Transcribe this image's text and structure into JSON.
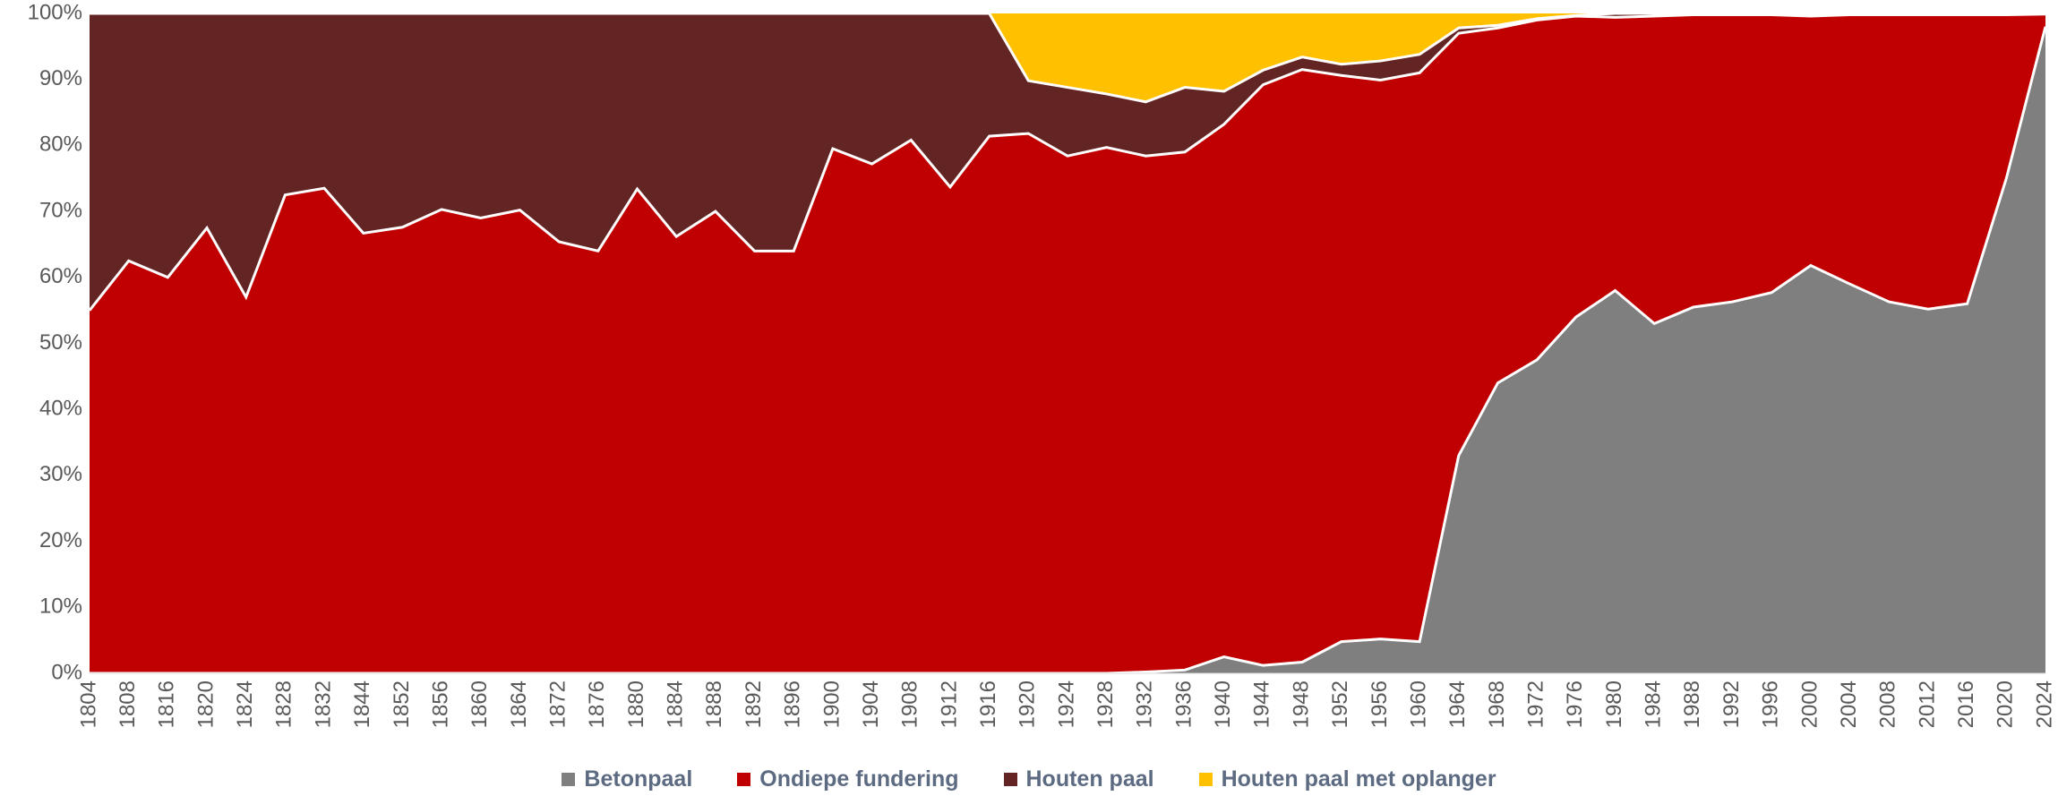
{
  "chart_data": {
    "type": "stacked-area-100",
    "categories": [
      "1804",
      "1808",
      "1816",
      "1820",
      "1824",
      "1828",
      "1832",
      "1844",
      "1852",
      "1856",
      "1860",
      "1864",
      "1872",
      "1876",
      "1880",
      "1884",
      "1888",
      "1892",
      "1896",
      "1900",
      "1904",
      "1908",
      "1912",
      "1916",
      "1920",
      "1924",
      "1928",
      "1932",
      "1936",
      "1940",
      "1944",
      "1948",
      "1952",
      "1956",
      "1960",
      "1964",
      "1968",
      "1972",
      "1976",
      "1980",
      "1984",
      "1988",
      "1992",
      "1996",
      "2000",
      "2004",
      "2008",
      "2012",
      "2016",
      "2020",
      "2024"
    ],
    "series": [
      {
        "name": "Betonpaal",
        "color": "#7f7f7f",
        "values": [
          0,
          0,
          0,
          0,
          0,
          0,
          0,
          0,
          0,
          0,
          0,
          0,
          0,
          0,
          0,
          0,
          0,
          0,
          0,
          0,
          0,
          0,
          0,
          0,
          0,
          0,
          0,
          0.2,
          0.5,
          2.5,
          1.2,
          1.7,
          4.8,
          5.2,
          4.8,
          33,
          44,
          47.5,
          54,
          58,
          53,
          55.5,
          56.3,
          57.7,
          61.8,
          59,
          56.3,
          55.2,
          56,
          75,
          98
        ]
      },
      {
        "name": "Ondiepe fundering",
        "color": "#c00000",
        "values": [
          55,
          62.5,
          60,
          67.5,
          57,
          72.5,
          73.5,
          66.7,
          67.6,
          70.3,
          69,
          70.2,
          65.4,
          64,
          73.4,
          66.2,
          70,
          64,
          64,
          79.5,
          77.2,
          80.8,
          73.7,
          81.4,
          81.8,
          78.4,
          79.7,
          78.2,
          78.5,
          80.7,
          88,
          89.8,
          85.8,
          84.7,
          86.2,
          64,
          53.8,
          51.5,
          45.6,
          41.4,
          46.6,
          44.3,
          43.5,
          42.1,
          37.8,
          40.8,
          43.5,
          44.6,
          43.8,
          24.8,
          1.9
        ]
      },
      {
        "name": "Houten paal",
        "color": "#632523",
        "values": [
          45,
          37.5,
          40,
          32.5,
          43,
          27.5,
          26.5,
          33.3,
          32.4,
          29.7,
          31,
          29.8,
          34.6,
          36,
          26.6,
          33.8,
          30,
          36,
          36,
          20.5,
          22.8,
          19.2,
          26.3,
          18.6,
          8,
          10.4,
          8.1,
          8.2,
          9.8,
          5,
          2.2,
          1.9,
          1.7,
          2.9,
          2.8,
          0.8,
          0.4,
          0.2,
          0.1,
          0.6,
          0.4,
          0.2,
          0.2,
          0.2,
          0.4,
          0.2,
          0.2,
          0.2,
          0.2,
          0.2,
          0.1
        ]
      },
      {
        "name": "Houten paal met oplanger",
        "color": "#ffc000",
        "values": [
          0,
          0,
          0,
          0,
          0,
          0,
          0,
          0,
          0,
          0,
          0,
          0,
          0,
          0,
          0,
          0,
          0,
          0,
          0,
          0,
          0,
          0,
          0,
          0,
          10.2,
          11.2,
          12.2,
          13.4,
          11.2,
          11.8,
          8.6,
          6.6,
          7.7,
          7.2,
          6.2,
          2.2,
          1.8,
          0.8,
          0.3,
          0,
          0,
          0,
          0,
          0,
          0,
          0,
          0,
          0,
          0,
          0,
          0
        ]
      }
    ],
    "ylim": [
      0,
      100
    ],
    "yticks": [
      {
        "value": 0,
        "label": "0%"
      },
      {
        "value": 10,
        "label": "10%"
      },
      {
        "value": 20,
        "label": "20%"
      },
      {
        "value": 30,
        "label": "30%"
      },
      {
        "value": 40,
        "label": "40%"
      },
      {
        "value": 50,
        "label": "50%"
      },
      {
        "value": 60,
        "label": "60%"
      },
      {
        "value": 70,
        "label": "70%"
      },
      {
        "value": 80,
        "label": "80%"
      },
      {
        "value": 90,
        "label": "90%"
      },
      {
        "value": 100,
        "label": "100%"
      }
    ],
    "legend": "bottom"
  }
}
